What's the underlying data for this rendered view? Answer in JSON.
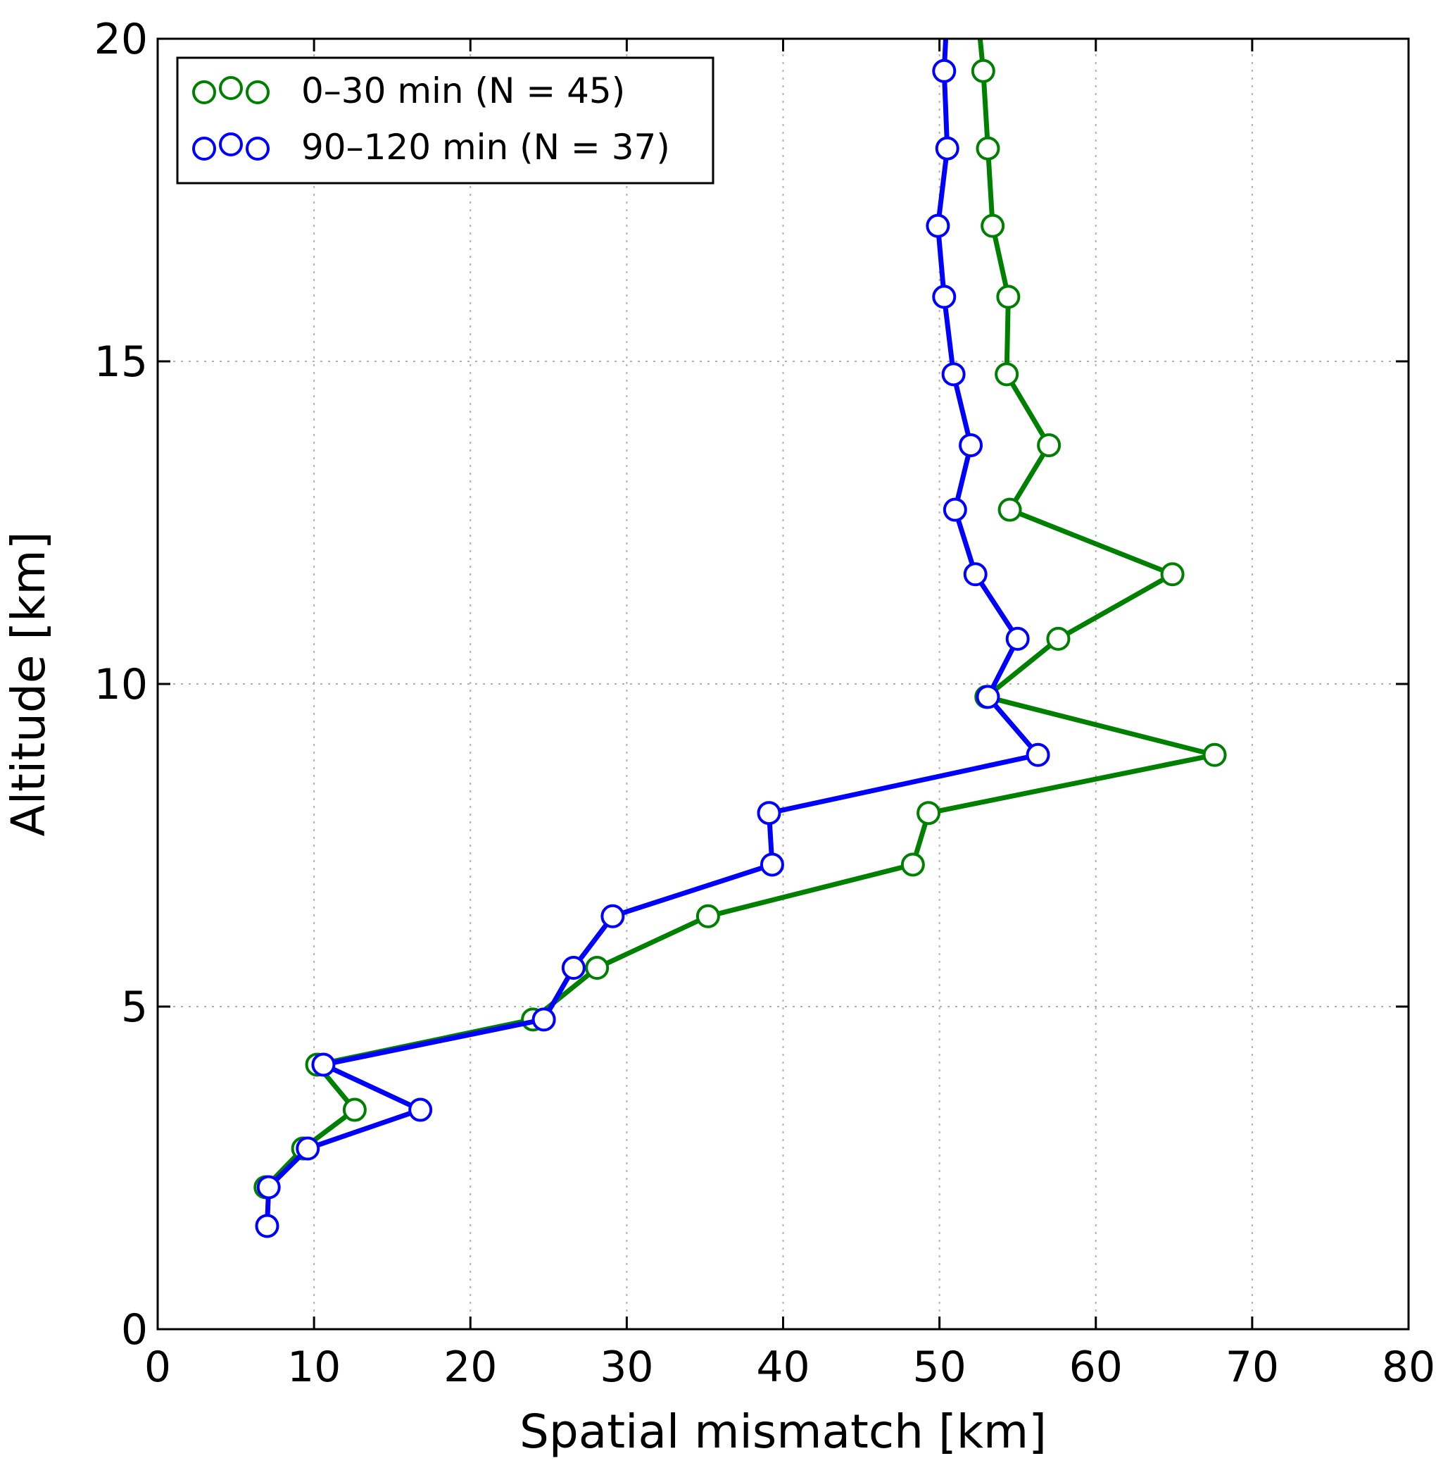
{
  "chart_data": {
    "type": "line",
    "title": "",
    "xlabel": "Spatial mismatch [km]",
    "ylabel": "Altitude [km]",
    "xlim": [
      0,
      80
    ],
    "ylim": [
      0,
      20
    ],
    "xticks": [
      0,
      10,
      20,
      30,
      40,
      50,
      60,
      70,
      80
    ],
    "yticks": [
      0,
      5,
      10,
      15,
      20
    ],
    "xtick_labels": [
      "0",
      "10",
      "20",
      "30",
      "40",
      "50",
      "60",
      "70",
      "80"
    ],
    "ytick_labels": [
      "0",
      "5",
      "10",
      "15",
      "20"
    ],
    "grid": true,
    "legend_position": "top-left",
    "series": [
      {
        "name": "0–30 min (N = 45)",
        "color": "#008000",
        "marker": "open-circle",
        "x": [
          6.9,
          9.3,
          12.6,
          10.2,
          24.0,
          28.1,
          35.2,
          48.3,
          49.3,
          67.6,
          53.0,
          57.6,
          64.9,
          54.5,
          57.0,
          54.3,
          54.4,
          53.4,
          53.1,
          52.8,
          52.6
        ],
        "y": [
          2.2,
          2.8,
          3.4,
          4.1,
          4.8,
          5.6,
          6.4,
          7.2,
          8.0,
          8.9,
          9.8,
          10.7,
          11.7,
          12.7,
          13.7,
          14.8,
          16.0,
          17.1,
          18.3,
          19.5,
          20.0
        ]
      },
      {
        "name": "90–120 min (N = 37)",
        "color": "#0000ff",
        "marker": "open-circle",
        "x": [
          7.0,
          7.1,
          9.6,
          16.8,
          10.6,
          24.7,
          26.6,
          29.1,
          39.3,
          39.1,
          56.3,
          53.1,
          55.0,
          52.3,
          51.0,
          52.0,
          50.9,
          50.3,
          49.9,
          50.5,
          50.3,
          50.4
        ],
        "y": [
          1.6,
          2.2,
          2.8,
          3.4,
          4.1,
          4.8,
          5.6,
          6.4,
          7.2,
          8.0,
          8.9,
          9.8,
          10.7,
          11.7,
          12.7,
          13.7,
          14.8,
          16.0,
          17.1,
          18.3,
          19.5,
          20.0
        ]
      }
    ]
  }
}
